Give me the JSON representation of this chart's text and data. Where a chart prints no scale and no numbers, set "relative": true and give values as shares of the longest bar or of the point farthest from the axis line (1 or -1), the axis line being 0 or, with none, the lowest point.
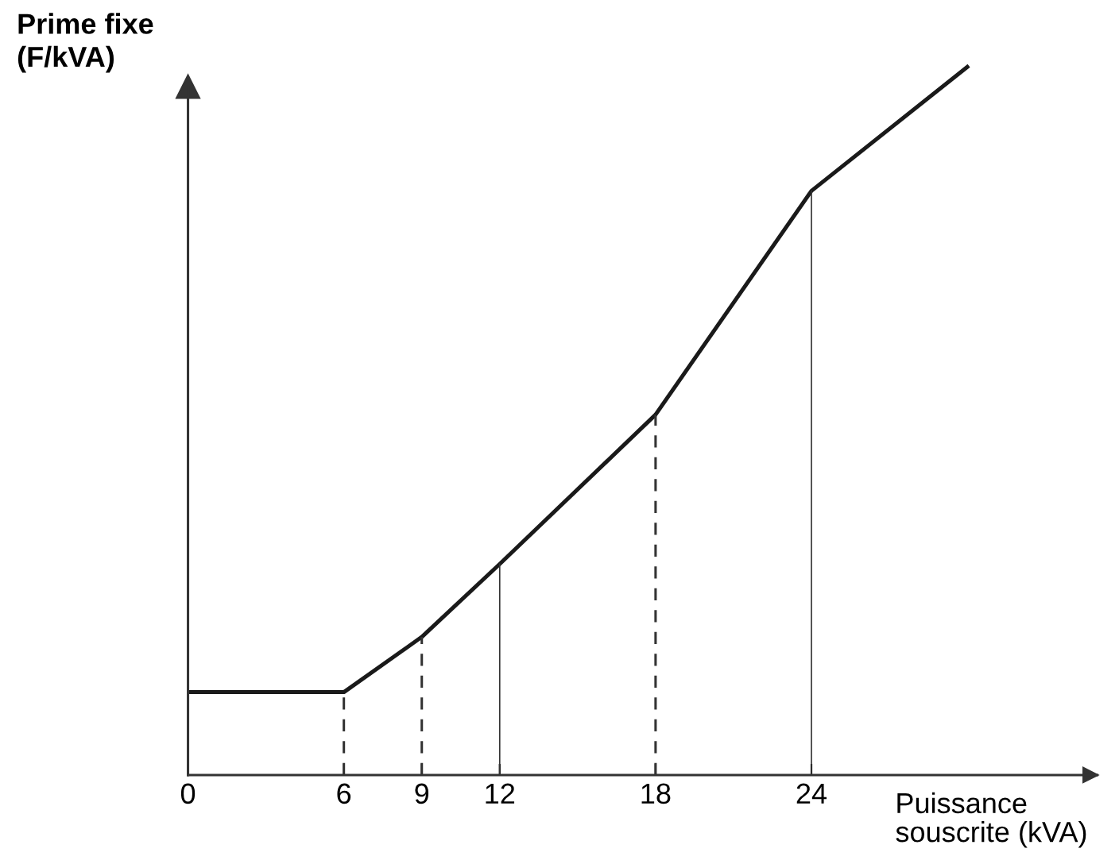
{
  "chart_data": {
    "type": "line",
    "xlabel": "Puissance\nsouscrite (kVA)",
    "ylabel": "Prime fixe\n(F/kVA)",
    "relative": true,
    "x": [
      0,
      6,
      9,
      12,
      18,
      24,
      30
    ],
    "series": [
      {
        "color": "#1a1a1a",
        "values": [
          0.117,
          0.117,
          0.195,
          0.298,
          0.509,
          0.825,
          1
        ]
      }
    ],
    "xlim": [
      0,
      35
    ],
    "xticks": [
      0,
      6,
      9,
      12,
      18,
      24
    ],
    "grid": false,
    "legend": false,
    "marker": "none",
    "ref_lines": [
      {
        "axis": "x",
        "value": 6,
        "line_style": "dashed"
      },
      {
        "axis": "x",
        "value": 9,
        "line_style": "dashed"
      },
      {
        "axis": "x",
        "value": 12,
        "line_style": "solid"
      },
      {
        "axis": "x",
        "value": 18,
        "line_style": "dashed"
      },
      {
        "axis": "x",
        "value": 24,
        "line_style": "solid"
      }
    ]
  }
}
